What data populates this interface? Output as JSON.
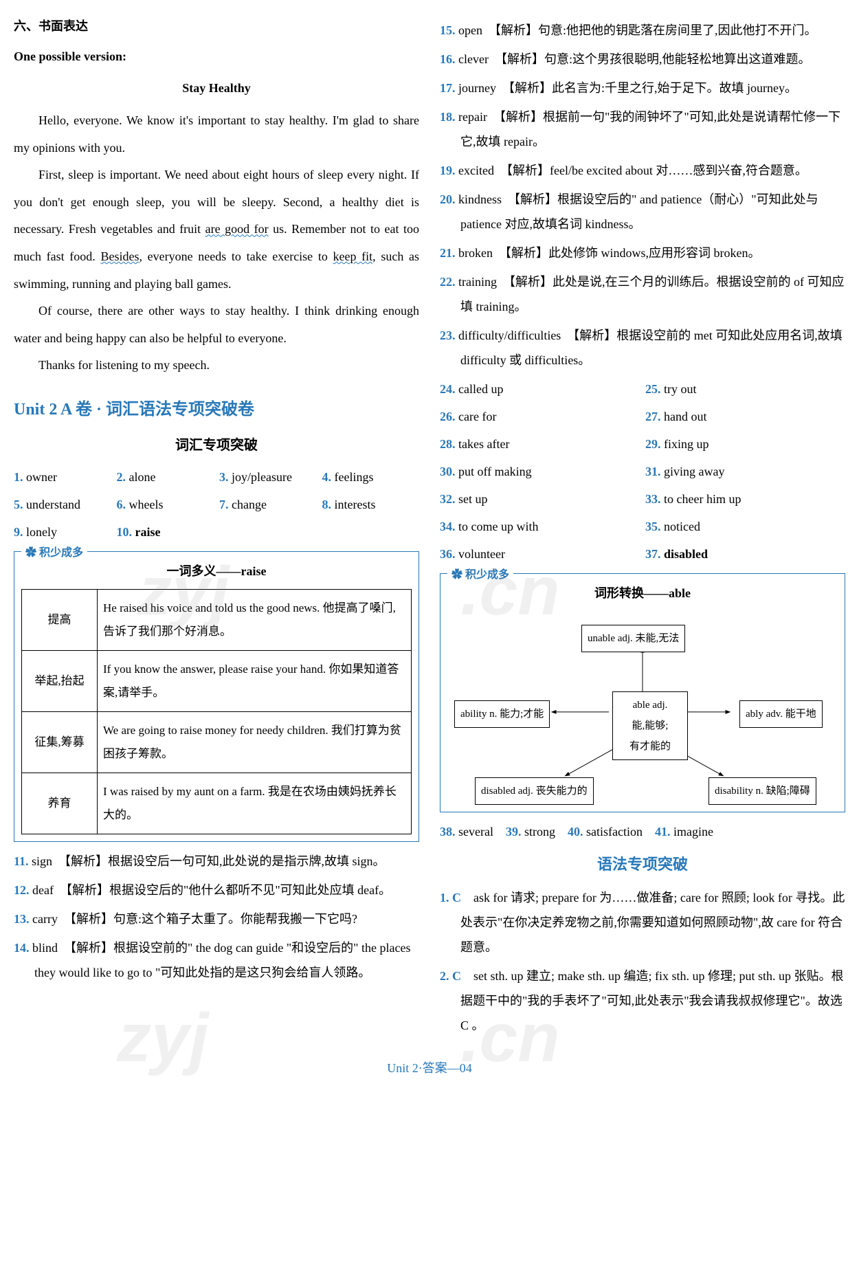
{
  "left": {
    "sectionTitle": "六、书面表达",
    "possibleVersion": "One possible version:",
    "essayTitle": "Stay Healthy",
    "p1_a": "Hello, everyone. We know it's important to stay healthy. I'm glad to share my opinions with you.",
    "p2_a": "First, sleep is important. We need about eight hours of sleep every night. If you don't get enough sleep, you will be sleepy. Second, a healthy diet is necessary. Fresh vegetables and fruit ",
    "p2_u1": "are good for",
    "p2_b": " us. Remember not to eat too much fast food. ",
    "p2_u2": "Besides",
    "p2_c": ", everyone needs to take exercise to ",
    "p2_u3": "keep fit",
    "p2_d": ", such as swimming, running and playing ball games.",
    "p3": "Of course, there are other ways to stay healthy. I think drinking enough water and being happy can also be helpful to everyone.",
    "p4": "Thanks for listening to my speech.",
    "unitTitle": "Unit 2   A 卷 · 词汇语法专项突破卷",
    "vocabTitle": "词汇专项突破",
    "answers1": [
      {
        "n": "1",
        "t": "owner"
      },
      {
        "n": "2",
        "t": "alone"
      },
      {
        "n": "3",
        "t": "joy/pleasure"
      },
      {
        "n": "4",
        "t": "feelings"
      },
      {
        "n": "5",
        "t": "understand"
      },
      {
        "n": "6",
        "t": "wheels"
      },
      {
        "n": "7",
        "t": "change"
      },
      {
        "n": "8",
        "t": "interests"
      },
      {
        "n": "9",
        "t": "lonely"
      },
      {
        "n": "10",
        "t": "raise",
        "bold": true
      }
    ],
    "boxLabel": "积少成多",
    "tableTitle": "一词多义——raise",
    "table": [
      {
        "h": "提高",
        "e": "He raised his voice and told us the good news. 他提高了嗓门,告诉了我们那个好消息。"
      },
      {
        "h": "举起,抬起",
        "e": "If you know the answer, please raise your hand. 你如果知道答案,请举手。"
      },
      {
        "h": "征集,筹募",
        "e": "We are going to raise money for needy children. 我们打算为贫困孩子筹款。"
      },
      {
        "h": "养育",
        "e": "I was raised by my aunt on a farm. 我是在农场由姨妈抚养长大的。"
      }
    ],
    "analysisItems": [
      {
        "n": "11",
        "w": "sign",
        "t": "【解析】根据设空后一句可知,此处说的是指示牌,故填 sign。"
      },
      {
        "n": "12",
        "w": "deaf",
        "t": "【解析】根据设空后的\"他什么都听不见\"可知此处应填 deaf。"
      },
      {
        "n": "13",
        "w": "carry",
        "t": "【解析】句意:这个箱子太重了。你能帮我搬一下它吗?"
      },
      {
        "n": "14",
        "w": "blind",
        "t": "【解析】根据设空前的\" the dog can guide \"和设空后的\" the places they would like to go to \"可知此处指的是这只狗会给盲人领路。"
      }
    ]
  },
  "right": {
    "analysisItems": [
      {
        "n": "15",
        "w": "open",
        "t": "【解析】句意:他把他的钥匙落在房间里了,因此他打不开门。"
      },
      {
        "n": "16",
        "w": "clever",
        "t": "【解析】句意:这个男孩很聪明,他能轻松地算出这道难题。"
      },
      {
        "n": "17",
        "w": "journey",
        "t": "【解析】此名言为:千里之行,始于足下。故填 journey。"
      },
      {
        "n": "18",
        "w": "repair",
        "t": "【解析】根据前一句\"我的闹钟坏了\"可知,此处是说请帮忙修一下它,故填 repair。"
      },
      {
        "n": "19",
        "w": "excited",
        "t": "【解析】feel/be excited about 对……感到兴奋,符合题意。"
      },
      {
        "n": "20",
        "w": "kindness",
        "t": "【解析】根据设空后的\" and patience（耐心）\"可知此处与 patience 对应,故填名词 kindness。"
      },
      {
        "n": "21",
        "w": "broken",
        "t": "【解析】此处修饰 windows,应用形容词 broken。"
      },
      {
        "n": "22",
        "w": "training",
        "t": "【解析】此处是说,在三个月的训练后。根据设空前的 of 可知应填 training。"
      },
      {
        "n": "23",
        "w": "difficulty/difficulties",
        "t": "【解析】根据设空前的 met 可知此处应用名词,故填 difficulty 或 difficulties。"
      }
    ],
    "answers2": [
      {
        "n": "24",
        "t": "called up"
      },
      {
        "n": "25",
        "t": "try out"
      },
      {
        "n": "26",
        "t": "care for"
      },
      {
        "n": "27",
        "t": "hand out"
      },
      {
        "n": "28",
        "t": "takes after"
      },
      {
        "n": "29",
        "t": "fixing up"
      },
      {
        "n": "30",
        "t": "put off making"
      },
      {
        "n": "31",
        "t": "giving away"
      },
      {
        "n": "32",
        "t": "set up"
      },
      {
        "n": "33",
        "t": "to cheer him up"
      },
      {
        "n": "34",
        "t": "to come up with"
      },
      {
        "n": "35",
        "t": "noticed"
      },
      {
        "n": "36",
        "t": "volunteer"
      },
      {
        "n": "37",
        "t": "disabled",
        "bold": true
      }
    ],
    "boxLabel": "积少成多",
    "diagramTitle": "词形转换——able",
    "nodes": {
      "top": "unable adj. 未能,无法",
      "left": "ability n. 能力;才能",
      "center": "able adj.\n能,能够;\n有才能的",
      "right": "ably adv. 能干地",
      "bl": "disabled adj. 丧失能力的",
      "br": "disability n. 缺陷;障碍"
    },
    "inlineAnswers": [
      {
        "n": "38",
        "t": "several"
      },
      {
        "n": "39",
        "t": "strong"
      },
      {
        "n": "40",
        "t": "satisfaction"
      },
      {
        "n": "41",
        "t": "imagine"
      }
    ],
    "grammarTitle": "语法专项突破",
    "grammarItems": [
      {
        "n": "1",
        "w": "C",
        "t": "ask for 请求; prepare for 为……做准备; care for 照顾; look for 寻找。此处表示\"在你决定养宠物之前,你需要知道如何照顾动物\",故 care for 符合题意。"
      },
      {
        "n": "2",
        "w": "C",
        "t": "set sth. up 建立; make sth. up 编造; fix sth. up 修理; put sth. up 张贴。根据题干中的\"我的手表坏了\"可知,此处表示\"我会请我叔叔修理它\"。故选 C 。"
      }
    ]
  },
  "footer": "Unit 2·答案—04"
}
